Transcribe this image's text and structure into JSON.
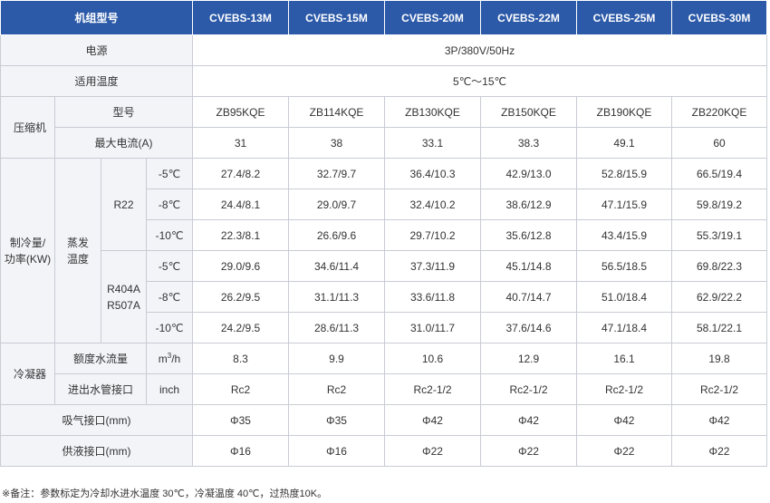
{
  "header": {
    "title": "机组型号",
    "models": [
      "CVEBS-13M",
      "CVEBS-15M",
      "CVEBS-20M",
      "CVEBS-22M",
      "CVEBS-25M",
      "CVEBS-30M"
    ]
  },
  "power": {
    "label": "电源",
    "value": "3P/380V/50Hz"
  },
  "temp": {
    "label": "适用温度",
    "value": "5℃～15℃"
  },
  "compressor": {
    "group": "压缩机",
    "model_label": "型号",
    "models": [
      "ZB95KQE",
      "ZB114KQE",
      "ZB130KQE",
      "ZB150KQE",
      "ZB190KQE",
      "ZB220KQE"
    ],
    "current_label": "最大电流(A)",
    "currents": [
      "31",
      "38",
      "33.1",
      "38.3",
      "49.1",
      "60"
    ]
  },
  "cooling": {
    "group_line1": "制冷量/",
    "group_line2": "功率(KW)",
    "evap_line1": "蒸发",
    "evap_line2": "温度",
    "r22": {
      "label": "R22",
      "rows": [
        {
          "temp": "-5℃",
          "values": [
            "27.4/8.2",
            "32.7/9.7",
            "36.4/10.3",
            "42.9/13.0",
            "52.8/15.9",
            "66.5/19.4"
          ]
        },
        {
          "temp": "-8℃",
          "values": [
            "24.4/8.1",
            "29.0/9.7",
            "32.4/10.2",
            "38.6/12.9",
            "47.1/15.9",
            "59.8/19.2"
          ]
        },
        {
          "temp": "-10℃",
          "values": [
            "22.3/8.1",
            "26.6/9.6",
            "29.7/10.2",
            "35.6/12.8",
            "43.4/15.9",
            "55.3/19.1"
          ]
        }
      ]
    },
    "r404": {
      "label_line1": "R404A",
      "label_line2": "R507A",
      "rows": [
        {
          "temp": "-5℃",
          "values": [
            "29.0/9.6",
            "34.6/11.4",
            "37.3/11.9",
            "45.1/14.8",
            "56.5/18.5",
            "69.8/22.3"
          ]
        },
        {
          "temp": "-8℃",
          "values": [
            "26.2/9.5",
            "31.1/11.3",
            "33.6/11.8",
            "40.7/14.7",
            "51.0/18.4",
            "62.9/22.2"
          ]
        },
        {
          "temp": "-10℃",
          "values": [
            "24.2/9.5",
            "28.6/11.3",
            "31.0/11.7",
            "37.6/14.6",
            "47.1/18.4",
            "58.1/22.1"
          ]
        }
      ]
    }
  },
  "condenser": {
    "group": "冷凝器",
    "flow_label": "额度水流量",
    "flow_unit_base": "m",
    "flow_unit_sup": "3",
    "flow_unit_tail": "/h",
    "flows": [
      "8.3",
      "9.9",
      "10.6",
      "12.9",
      "16.1",
      "19.8"
    ],
    "pipe_label": "进出水管接口",
    "pipe_unit": "inch",
    "pipes": [
      "Rc2",
      "Rc2",
      "Rc2-1/2",
      "Rc2-1/2",
      "Rc2-1/2",
      "Rc2-1/2"
    ]
  },
  "suction": {
    "label": "吸气接口(mm)",
    "values": [
      "Φ35",
      "Φ35",
      "Φ42",
      "Φ42",
      "Φ42",
      "Φ42"
    ]
  },
  "liquid": {
    "label": "供液接口(mm)",
    "values": [
      "Φ16",
      "Φ16",
      "Φ22",
      "Φ22",
      "Φ22",
      "Φ22"
    ]
  },
  "note": "※备注：参数标定为冷却水进水温度 30℃，冷凝温度 40℃，过热度10K。"
}
